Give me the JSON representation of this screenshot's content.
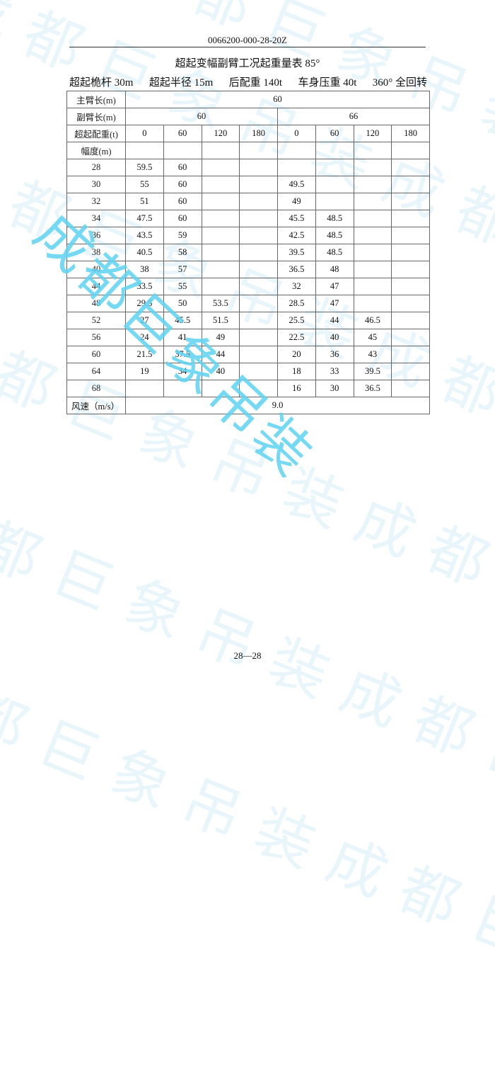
{
  "header": {
    "doc_code": "0066200-000-28-20Z"
  },
  "title": "超起变幅副臂工况起重量表 85°",
  "specs": [
    "超起桅杆 30m",
    "超起半径 15m",
    "后配重 140t",
    "车身压重 40t",
    "360° 全回转"
  ],
  "table": {
    "main_boom_label": "主臂长(m)",
    "main_boom_value": "60",
    "jib_label": "副臂长(m)",
    "jib_values": [
      "60",
      "66"
    ],
    "counterweight_label": "超起配重(t)",
    "counterweights": [
      "0",
      "60",
      "120",
      "180",
      "0",
      "60",
      "120",
      "180"
    ],
    "radius_label": "幅度(m)",
    "rows": [
      {
        "radius": "28",
        "values": [
          "59.5",
          "60",
          "",
          "",
          "",
          "",
          "",
          ""
        ]
      },
      {
        "radius": "30",
        "values": [
          "55",
          "60",
          "",
          "",
          "49.5",
          "",
          "",
          ""
        ]
      },
      {
        "radius": "32",
        "values": [
          "51",
          "60",
          "",
          "",
          "49",
          "",
          "",
          ""
        ]
      },
      {
        "radius": "34",
        "values": [
          "47.5",
          "60",
          "",
          "",
          "45.5",
          "48.5",
          "",
          ""
        ]
      },
      {
        "radius": "36",
        "values": [
          "43.5",
          "59",
          "",
          "",
          "42.5",
          "48.5",
          "",
          ""
        ]
      },
      {
        "radius": "38",
        "values": [
          "40.5",
          "58",
          "",
          "",
          "39.5",
          "48.5",
          "",
          ""
        ]
      },
      {
        "radius": "40",
        "values": [
          "38",
          "57",
          "",
          "",
          "36.5",
          "48",
          "",
          ""
        ]
      },
      {
        "radius": "44",
        "values": [
          "33.5",
          "55",
          "",
          "",
          "32",
          "47",
          "",
          ""
        ]
      },
      {
        "radius": "48",
        "values": [
          "29.5",
          "50",
          "53.5",
          "",
          "28.5",
          "47",
          "",
          ""
        ]
      },
      {
        "radius": "52",
        "values": [
          "27",
          "45.5",
          "51.5",
          "",
          "25.5",
          "44",
          "46.5",
          ""
        ]
      },
      {
        "radius": "56",
        "values": [
          "24",
          "41",
          "49",
          "",
          "22.5",
          "40",
          "45",
          ""
        ]
      },
      {
        "radius": "60",
        "values": [
          "21.5",
          "37.5",
          "44",
          "",
          "20",
          "36",
          "43",
          ""
        ]
      },
      {
        "radius": "64",
        "values": [
          "19",
          "34",
          "40",
          "",
          "18",
          "33",
          "39.5",
          ""
        ]
      },
      {
        "radius": "68",
        "values": [
          "",
          "",
          "",
          "",
          "16",
          "30",
          "36.5",
          ""
        ]
      }
    ],
    "wind_label": "风速（m/s）",
    "wind_value": "9.0"
  },
  "footer": {
    "page": "28—28"
  },
  "watermark": {
    "text": "成都巨象吊装",
    "color_faint": "#e8f6fc",
    "color_strong": "#5fd3f3"
  }
}
